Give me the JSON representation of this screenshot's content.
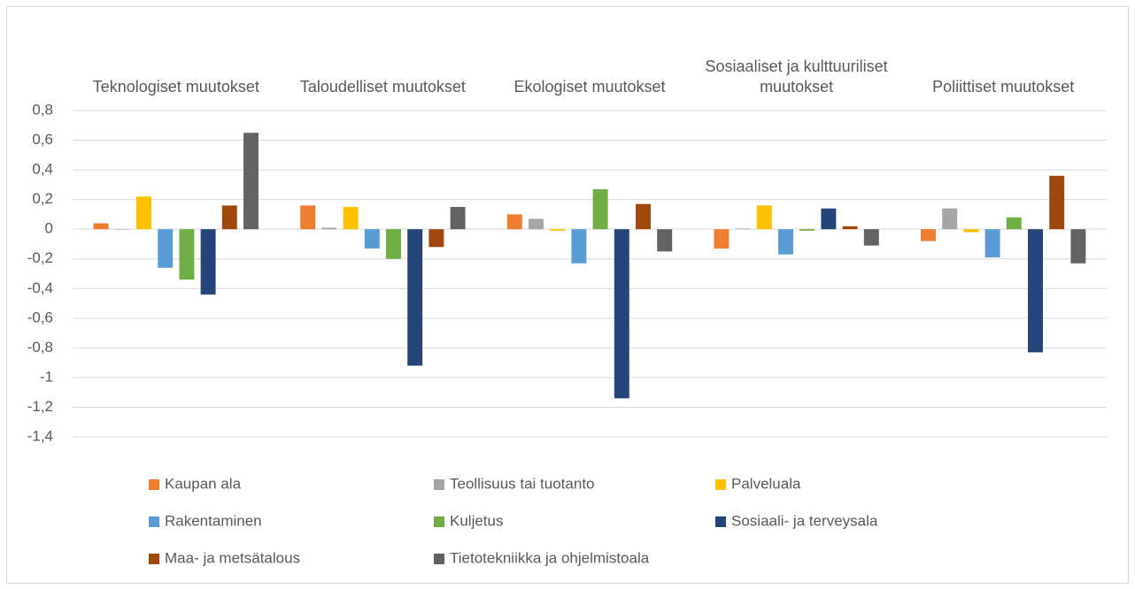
{
  "chart_data": {
    "type": "bar",
    "categories": [
      "Teknologiset muutokset",
      "Taloudelliset muutokset",
      "Ekologiset muutokset",
      "Sosiaaliset ja kulttuuriliset muutokset",
      "Poliittiset muutokset"
    ],
    "series": [
      {
        "name": "Kaupan ala",
        "color": "#ED7D31",
        "values": [
          0.04,
          0.16,
          0.1,
          -0.13,
          -0.08
        ]
      },
      {
        "name": "Teollisuus tai tuotanto",
        "color": "#A5A5A5",
        "values": [
          0.0,
          0.01,
          0.07,
          0.005,
          0.14
        ]
      },
      {
        "name": "Palveluala",
        "color": "#FFC000",
        "values": [
          0.22,
          0.15,
          -0.01,
          0.16,
          -0.02
        ]
      },
      {
        "name": "Rakentaminen",
        "color": "#5B9BD5",
        "values": [
          -0.26,
          -0.13,
          -0.23,
          -0.17,
          -0.19
        ]
      },
      {
        "name": "Kuljetus",
        "color": "#70AD47",
        "values": [
          -0.34,
          -0.2,
          0.27,
          -0.01,
          0.08
        ]
      },
      {
        "name": "Sosiaali- ja terveysala",
        "color": "#264478",
        "values": [
          -0.44,
          -0.92,
          -1.14,
          0.14,
          -0.83
        ]
      },
      {
        "name": "Maa- ja metsätalous",
        "color": "#9E480E",
        "values": [
          0.16,
          -0.12,
          0.17,
          0.02,
          0.36
        ]
      },
      {
        "name": "Tietotekniikka ja ohjelmistoala",
        "color": "#636363",
        "values": [
          0.65,
          0.15,
          -0.15,
          -0.11,
          -0.23
        ]
      }
    ],
    "ylim": [
      -1.4,
      0.8
    ],
    "yticks": [
      {
        "value": 0.8,
        "label": "0,8"
      },
      {
        "value": 0.6,
        "label": "0,6"
      },
      {
        "value": 0.4,
        "label": "0,4"
      },
      {
        "value": 0.2,
        "label": "0,2"
      },
      0,
      {
        "value": -0.2,
        "label": "-0,2"
      },
      {
        "value": -0.4,
        "label": "-0,4"
      },
      {
        "value": -0.6,
        "label": "-0,6"
      },
      {
        "value": -0.8,
        "label": "-0,8"
      },
      -1,
      {
        "value": -1.2,
        "label": "-1,2"
      },
      {
        "value": -1.4,
        "label": "-1,4"
      }
    ],
    "grid": true,
    "legend": "bottom"
  }
}
